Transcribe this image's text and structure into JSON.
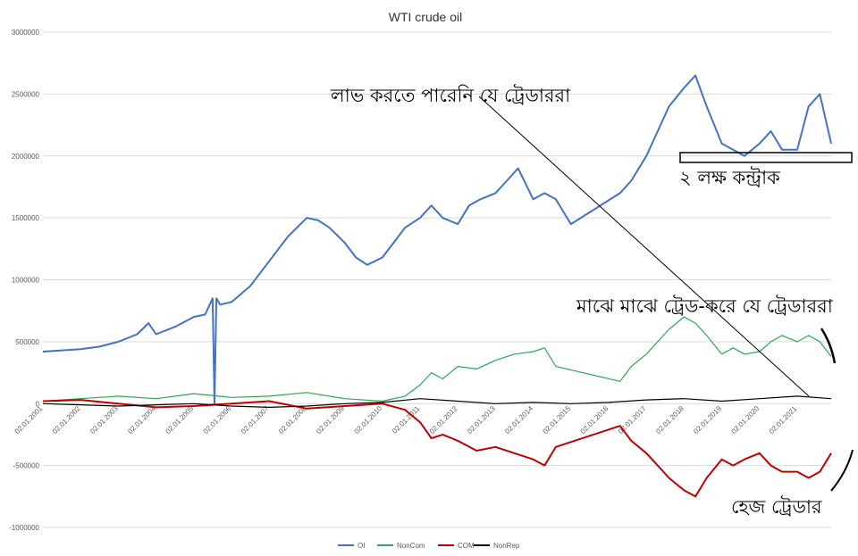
{
  "chart_data": {
    "type": "line",
    "title": "WTI crude oil",
    "xlabel": "",
    "ylabel": "",
    "ylim": [
      -1000000,
      3000000
    ],
    "yticks": [
      3000000,
      2500000,
      2000000,
      1500000,
      1000000,
      500000,
      0,
      -500000,
      -1000000
    ],
    "ytick_labels": [
      "3000000",
      "2500000",
      "2000000",
      "1500000",
      "1000000",
      "500000",
      "0",
      "-500000",
      "-1000000"
    ],
    "x_tick_labels": [
      "02.01.2001",
      "02.01.2002",
      "02.01.2003",
      "02.01.2004",
      "02.01.2005",
      "02.01.2006",
      "02.01.2007",
      "02.01.2008",
      "02.01.2009",
      "02.01.2010",
      "02.01.2011",
      "02.01.2012",
      "02.01.2013",
      "02.01.2014",
      "02.01.2015",
      "02.01.2016",
      "02.01.2017",
      "02.01.2018",
      "02.01.2019",
      "02.01.2020",
      "02.01.2021"
    ],
    "x_range": [
      2001.0,
      2021.9
    ],
    "grid": true,
    "legend_position": "bottom",
    "series": [
      {
        "name": "OI",
        "color": "#4472c4",
        "x": [
          2001.0,
          2001.5,
          2002.0,
          2002.5,
          2003.0,
          2003.5,
          2003.8,
          2004.0,
          2004.5,
          2005.0,
          2005.3,
          2005.5,
          2005.55,
          2005.6,
          2005.7,
          2006.0,
          2006.5,
          2007.0,
          2007.5,
          2008.0,
          2008.3,
          2008.6,
          2009.0,
          2009.3,
          2009.6,
          2010.0,
          2010.3,
          2010.6,
          2011.0,
          2011.3,
          2011.6,
          2012.0,
          2012.3,
          2012.6,
          2013.0,
          2013.3,
          2013.6,
          2014.0,
          2014.3,
          2014.6,
          2015.0,
          2016.3,
          2016.6,
          2017.0,
          2017.3,
          2017.6,
          2018.0,
          2018.3,
          2018.6,
          2019.0,
          2019.3,
          2019.6,
          2020.0,
          2020.3,
          2020.6,
          2021.0,
          2021.3,
          2021.6,
          2021.9
        ],
        "values": [
          420000,
          430000,
          440000,
          460000,
          500000,
          560000,
          650000,
          560000,
          620000,
          700000,
          720000,
          850000,
          0,
          850000,
          800000,
          820000,
          950000,
          1150000,
          1350000,
          1500000,
          1480000,
          1420000,
          1300000,
          1180000,
          1120000,
          1180000,
          1300000,
          1420000,
          1500000,
          1600000,
          1500000,
          1450000,
          1600000,
          1650000,
          1700000,
          1800000,
          1900000,
          1650000,
          1700000,
          1650000,
          1450000,
          1700000,
          1800000,
          2000000,
          2200000,
          2400000,
          2550000,
          2650000,
          2400000,
          2100000,
          2050000,
          2000000,
          2100000,
          2200000,
          2050000,
          2050000,
          2400000,
          2500000,
          2100000
        ]
      },
      {
        "name": "NonCom",
        "color": "#2ca850",
        "x": [
          2001.0,
          2002.0,
          2003.0,
          2004.0,
          2005.0,
          2006.0,
          2007.0,
          2008.0,
          2009.0,
          2010.0,
          2010.6,
          2011.0,
          2011.3,
          2011.6,
          2012.0,
          2012.5,
          2013.0,
          2013.5,
          2014.0,
          2014.3,
          2014.6,
          2016.3,
          2016.6,
          2017.0,
          2017.3,
          2017.6,
          2018.0,
          2018.3,
          2018.6,
          2019.0,
          2019.3,
          2019.6,
          2020.0,
          2020.3,
          2020.6,
          2021.0,
          2021.3,
          2021.6,
          2021.9
        ],
        "values": [
          20000,
          40000,
          60000,
          40000,
          80000,
          50000,
          60000,
          90000,
          40000,
          20000,
          60000,
          150000,
          250000,
          200000,
          300000,
          280000,
          350000,
          400000,
          420000,
          450000,
          300000,
          180000,
          300000,
          400000,
          500000,
          600000,
          700000,
          650000,
          550000,
          400000,
          450000,
          400000,
          420000,
          500000,
          550000,
          500000,
          550000,
          500000,
          380000
        ]
      },
      {
        "name": "COM",
        "color": "#c00000",
        "x": [
          2001.0,
          2002.0,
          2003.0,
          2004.0,
          2005.0,
          2006.0,
          2007.0,
          2008.0,
          2009.0,
          2010.0,
          2010.6,
          2011.0,
          2011.3,
          2011.6,
          2012.0,
          2012.5,
          2013.0,
          2013.5,
          2014.0,
          2014.3,
          2014.6,
          2016.3,
          2016.6,
          2017.0,
          2017.3,
          2017.6,
          2018.0,
          2018.3,
          2018.6,
          2019.0,
          2019.3,
          2019.6,
          2020.0,
          2020.3,
          2020.6,
          2021.0,
          2021.3,
          2021.6,
          2021.9
        ],
        "values": [
          20000,
          30000,
          0,
          -30000,
          -20000,
          0,
          20000,
          -40000,
          -20000,
          0,
          -50000,
          -150000,
          -280000,
          -250000,
          -300000,
          -380000,
          -350000,
          -400000,
          -450000,
          -500000,
          -350000,
          -180000,
          -300000,
          -400000,
          -500000,
          -600000,
          -700000,
          -750000,
          -600000,
          -450000,
          -500000,
          -450000,
          -400000,
          -500000,
          -550000,
          -550000,
          -600000,
          -550000,
          -400000
        ]
      },
      {
        "name": "NonRep",
        "color": "#000000",
        "x": [
          2001.0,
          2002.0,
          2003.0,
          2004.0,
          2005.0,
          2006.0,
          2007.0,
          2008.0,
          2009.0,
          2010.0,
          2011.0,
          2012.0,
          2013.0,
          2014.0,
          2015.0,
          2016.0,
          2017.0,
          2018.0,
          2019.0,
          2020.0,
          2021.0,
          2021.9
        ],
        "values": [
          0,
          -10000,
          -20000,
          -10000,
          0,
          -20000,
          -30000,
          -20000,
          0,
          10000,
          40000,
          20000,
          0,
          10000,
          0,
          10000,
          30000,
          40000,
          20000,
          40000,
          60000,
          40000
        ]
      }
    ],
    "annotations": [
      {
        "text": "লাভ করতে পারেনি যে ট্রেডাররা"
      },
      {
        "text": "২ লক্ষ কন্ট্রাক"
      },
      {
        "text": "মাঝে মাঝে ট্রেড-করে যে ট্রেডাররা"
      },
      {
        "text": "হেজ ট্রেডার"
      }
    ]
  }
}
